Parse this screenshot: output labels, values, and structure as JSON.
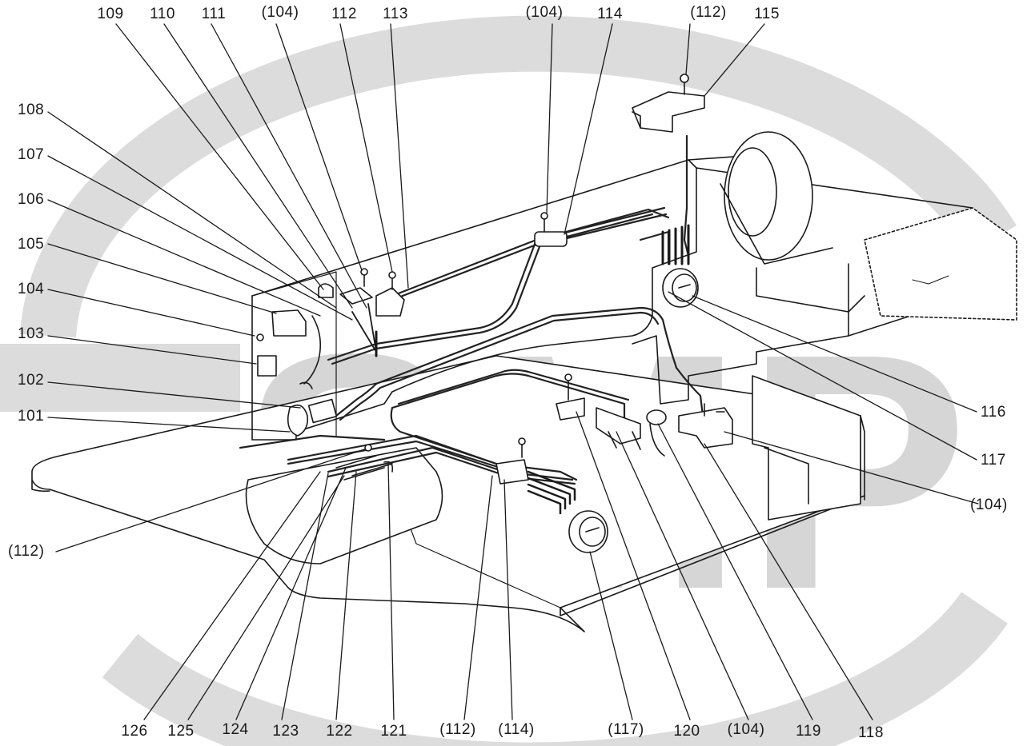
{
  "watermark": {
    "text": "SMP",
    "color": "#d2d2d2"
  },
  "colors": {
    "line": "#1a1a1a",
    "wire": "#222222",
    "fill": "#ffffff",
    "shade": "#9a9a9a"
  },
  "labels": {
    "l109": "109",
    "l110": "110",
    "l111": "111",
    "l104a": "(104)",
    "l112": "112",
    "l113": "113",
    "l104b": "(104)",
    "l114": "114",
    "l112b": "(112)",
    "l115": "115",
    "l108": "108",
    "l107": "107",
    "l106": "106",
    "l105": "105",
    "l104": "104",
    "l103": "103",
    "l102": "102",
    "l101": "101",
    "l112c": "(112)",
    "l116": "116",
    "l117": "117",
    "l104c": "(104)",
    "l126": "126",
    "l125": "125",
    "l124": "124",
    "l123": "123",
    "l122": "122",
    "l121": "121",
    "l112d": "(112)",
    "l114b": "(114)",
    "l117b": "(117)",
    "l120": "120",
    "l104d": "(104)",
    "l119": "119",
    "l118": "118"
  }
}
